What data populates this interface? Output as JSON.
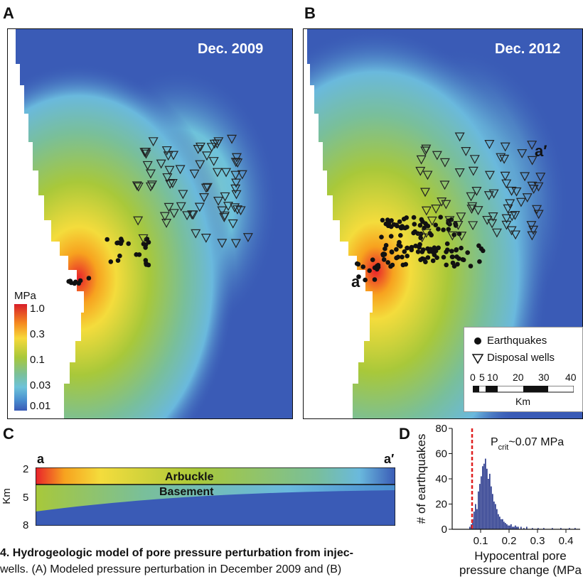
{
  "panels": {
    "a": {
      "letter": "A",
      "date": "Dec. 2009"
    },
    "b": {
      "letter": "B",
      "date": "Dec. 2012",
      "profile_start": "a",
      "profile_end": "a′"
    },
    "c": {
      "letter": "C",
      "start": "a",
      "end": "a′",
      "axis_label": "Km",
      "ticks": [
        "2",
        "5",
        "8"
      ],
      "layers": [
        "Arbuckle",
        "Basement"
      ]
    },
    "d": {
      "letter": "D"
    }
  },
  "colorbar": {
    "unit": "MPa",
    "ticks": [
      "1.0",
      "0.3",
      "0.1",
      "0.03",
      "0.01"
    ],
    "colors": [
      "#d81e2a",
      "#f58a1f",
      "#f7d93a",
      "#a8c83a",
      "#7bc09a",
      "#6dc3d9",
      "#4a8fd0",
      "#3a5bb6"
    ]
  },
  "legend": {
    "earthquakes": "Earthquakes",
    "wells": "Disposal wells",
    "scale_ticks": [
      "0",
      "5",
      "10",
      "20",
      "30",
      "40"
    ],
    "scale_unit": "Km"
  },
  "caption": {
    "line1_prefix": "4. Hydrogeologic model of pore pressure perturbation from injec-",
    "line2": "wells. (A) Modeled pressure perturbation in December 2009 and (B)"
  },
  "chart_data": {
    "type": "bar",
    "title": "",
    "xlabel": "Hypocentral pore pressure change (MPa)",
    "xlabel_lines": [
      "Hypocentral pore",
      "pressure change (MPa"
    ],
    "ylabel": "# of earthquakes",
    "xlim": [
      0.0,
      0.45
    ],
    "ylim": [
      0,
      80
    ],
    "xticks": [
      "0.1",
      "0.2",
      "0.3",
      "0.4"
    ],
    "yticks": [
      "0",
      "20",
      "40",
      "60",
      "80"
    ],
    "annotation": "P_crit ~0.07 MPa",
    "annotation_main": "P",
    "annotation_sub": "crit",
    "annotation_rest": "~0.07 MPa",
    "threshold": 0.07,
    "bin_width": 0.005,
    "bin_starts": [
      0.06,
      0.065,
      0.07,
      0.075,
      0.08,
      0.085,
      0.09,
      0.095,
      0.1,
      0.105,
      0.11,
      0.115,
      0.12,
      0.125,
      0.13,
      0.135,
      0.14,
      0.145,
      0.15,
      0.155,
      0.16,
      0.165,
      0.17,
      0.175,
      0.18,
      0.185,
      0.19,
      0.195,
      0.2,
      0.205,
      0.21,
      0.215,
      0.22,
      0.225,
      0.23,
      0.24,
      0.25,
      0.26,
      0.28,
      0.3,
      0.32,
      0.35,
      0.38,
      0.41,
      0.43
    ],
    "values": [
      2,
      4,
      8,
      14,
      20,
      16,
      30,
      36,
      42,
      50,
      52,
      56,
      48,
      40,
      44,
      34,
      28,
      22,
      20,
      16,
      12,
      10,
      8,
      8,
      6,
      5,
      4,
      3,
      3,
      4,
      2,
      2,
      3,
      2,
      2,
      2,
      1,
      2,
      1,
      1,
      1,
      1,
      1,
      1,
      1
    ],
    "bar_color": "#2e3d8f",
    "threshold_color": "#e02020"
  }
}
